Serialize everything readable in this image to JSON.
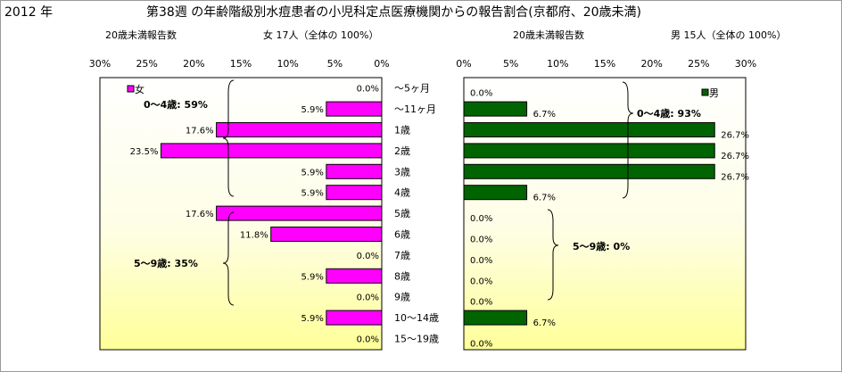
{
  "header": {
    "year": "2012 年",
    "title": "第38週 の年齢階級別水痘患者の小児科定点医療機関からの報告割合(京都府、20歳未満)"
  },
  "female_panel": {
    "subtitle_left": "20歳未満報告数",
    "subtitle_right": "女 17人（全体の 100%）",
    "legend": "女",
    "group1_label": "0～4歳: 59%",
    "group2_label": "5～9歳: 35%",
    "bar_color": "#ff00ff"
  },
  "male_panel": {
    "subtitle_left": "20歳未満報告数",
    "subtitle_right": "男 15人（全体の 100%）",
    "legend": "男",
    "group1_label": "0～4歳: 93%",
    "group2_label": "5～9歳: 0%",
    "bar_color": "#006400"
  },
  "chart_data": [
    {
      "type": "bar",
      "orientation": "horizontal",
      "direction": "right-to-left",
      "series": [
        {
          "name": "女",
          "values": [
            0.0,
            5.9,
            17.6,
            23.5,
            5.9,
            5.9,
            17.6,
            11.8,
            0.0,
            5.9,
            0.0,
            5.9,
            0.0
          ]
        }
      ],
      "value_labels": [
        "0.0%",
        "5.9%",
        "17.6%",
        "23.5%",
        "5.9%",
        "5.9%",
        "17.6%",
        "11.8%",
        "0.0%",
        "5.9%",
        "0.0%",
        "5.9%",
        "0.0%"
      ],
      "xlim": [
        0,
        30
      ],
      "xticks": [
        "30%",
        "25%",
        "20%",
        "15%",
        "10%",
        "5%",
        "0%"
      ],
      "legend_position": "top-left"
    },
    {
      "type": "bar",
      "orientation": "horizontal",
      "direction": "left-to-right",
      "series": [
        {
          "name": "男",
          "values": [
            0.0,
            6.7,
            26.7,
            26.7,
            26.7,
            6.7,
            0.0,
            0.0,
            0.0,
            0.0,
            0.0,
            6.7,
            0.0
          ]
        }
      ],
      "value_labels": [
        "0.0%",
        "6.7%",
        "26.7%",
        "26.7%",
        "26.7%",
        "6.7%",
        "0.0%",
        "0.0%",
        "0.0%",
        "0.0%",
        "0.0%",
        "6.7%",
        "0.0%"
      ],
      "xlim": [
        0,
        30
      ],
      "xticks": [
        "0%",
        "5%",
        "10%",
        "15%",
        "20%",
        "25%",
        "30%"
      ],
      "legend_position": "top-right"
    }
  ],
  "categories": [
    "～5ヶ月",
    "～11ヶ月",
    "1歳",
    "2歳",
    "3歳",
    "4歳",
    "5歳",
    "6歳",
    "7歳",
    "8歳",
    "9歳",
    "10～14歳",
    "15～19歳"
  ]
}
